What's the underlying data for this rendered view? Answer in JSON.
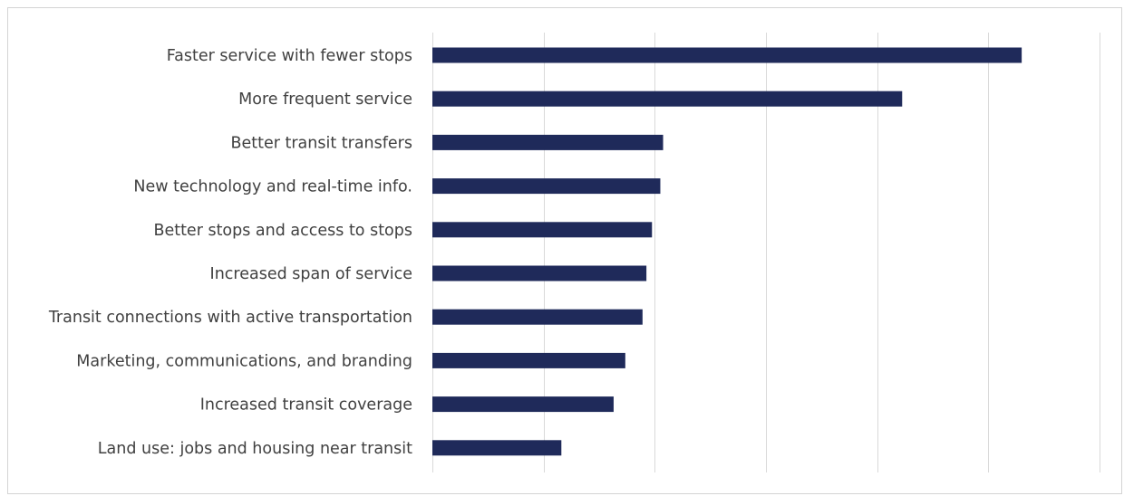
{
  "chart_data": {
    "type": "bar",
    "orientation": "horizontal",
    "categories": [
      "Faster service with fewer stops",
      "More frequent service",
      "Better transit transfers",
      "New technology and real-time info.",
      "Better stops and access to stops",
      "Increased span of service",
      "Transit connections with active transportation",
      "Marketing, communications, and branding",
      "Increased transit coverage",
      "Land use: jobs and housing near transit"
    ],
    "values": [
      106,
      84.5,
      41.5,
      41,
      39.5,
      38.5,
      37.8,
      34.7,
      32.6,
      23.2
    ],
    "xlim": [
      0,
      120
    ],
    "gridline_interval": 20,
    "grid": true,
    "title": "",
    "xlabel": "",
    "ylabel": "",
    "bar_color": "#1f2a5a",
    "grid_color": "#d9d9d9",
    "label_color": "#404040"
  }
}
